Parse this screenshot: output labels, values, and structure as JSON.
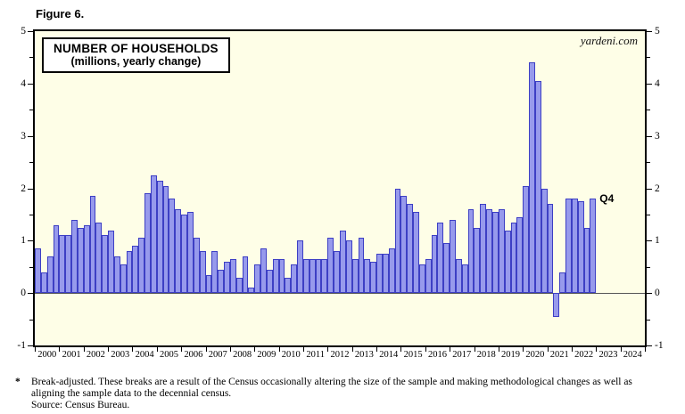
{
  "figure_label": "Figure 6.",
  "watermark": "yardeni.com",
  "title": {
    "line1": "NUMBER OF HOUSEHOLDS",
    "line2": "(millions, yearly change)"
  },
  "q4_annotation": "Q4",
  "footnote": {
    "marker": "*",
    "lines": [
      "Break-adjusted. These breaks are a result of the Census occasionally altering the size of the sample and making methodological changes as well as",
      "aligning the sample data to the decennial census.",
      "Source: Census Bureau."
    ]
  },
  "colors": {
    "plot_bg": "#FEFEE7",
    "bar_fill": "#979AEC",
    "bar_border": "#3D3FC4",
    "frame": "#000000",
    "zero_line": "#555555"
  },
  "chart_data": {
    "type": "bar",
    "title": "NUMBER OF HOUSEHOLDS (millions, yearly change)",
    "ylabel": "millions, yearly change",
    "xlabel": "",
    "frequency": "quarterly",
    "x_years": [
      2000,
      2001,
      2002,
      2003,
      2004,
      2005,
      2006,
      2007,
      2008,
      2009,
      2010,
      2011,
      2012,
      2013,
      2014,
      2015,
      2016,
      2017,
      2018,
      2019,
      2020,
      2021,
      2022,
      2023,
      2024
    ],
    "ylim": [
      -1,
      5
    ],
    "yticks": [
      -1,
      0,
      1,
      2,
      3,
      4,
      5
    ],
    "yticks_minor": [
      -0.5,
      0.5,
      1.5,
      2.5,
      3.5,
      4.5
    ],
    "grid": "zero-line-only",
    "legend": "none",
    "series": [
      {
        "name": "Number of households, yearly change (millions)",
        "start": "2000-Q1",
        "end": "2022-Q4",
        "values": [
          0.85,
          0.4,
          0.7,
          1.3,
          1.1,
          1.1,
          1.4,
          1.25,
          1.3,
          1.85,
          1.35,
          1.1,
          1.2,
          0.7,
          0.55,
          0.8,
          0.9,
          1.05,
          1.9,
          2.25,
          2.15,
          2.05,
          1.8,
          1.6,
          1.5,
          1.55,
          1.05,
          0.8,
          0.35,
          0.8,
          0.45,
          0.6,
          0.65,
          0.3,
          0.7,
          0.1,
          0.55,
          0.85,
          0.45,
          0.65,
          0.65,
          0.3,
          0.55,
          1.0,
          0.65,
          0.65,
          0.65,
          0.65,
          1.05,
          0.8,
          1.2,
          1.0,
          0.65,
          1.05,
          0.65,
          0.6,
          0.75,
          0.75,
          0.85,
          2.0,
          1.85,
          1.7,
          1.55,
          0.55,
          0.65,
          1.1,
          1.35,
          0.95,
          1.4,
          0.65,
          0.55,
          1.6,
          1.25,
          1.7,
          1.6,
          1.55,
          1.6,
          1.2,
          1.35,
          1.45,
          2.05,
          4.4,
          4.05,
          2.0,
          1.7,
          -0.45,
          0.4,
          1.8,
          1.8,
          1.75,
          1.25,
          1.8
        ]
      }
    ],
    "annotation": {
      "text": "Q4",
      "target": "2022-Q4",
      "value": 1.8
    }
  }
}
